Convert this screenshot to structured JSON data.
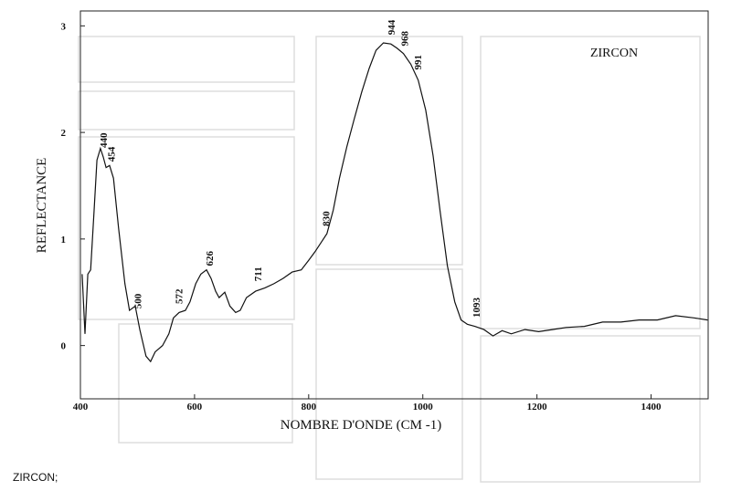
{
  "chart_data": {
    "type": "line",
    "title": "ZIRCON",
    "x_label": "NOMBRE D'ONDE (CM -1)",
    "y_label": "REFLECTANCE",
    "caption": "ZIRCON;",
    "color": "#111111",
    "xlim": [
      400,
      1500
    ],
    "ylim": [
      -0.5,
      3.14
    ],
    "xticks": [
      400,
      600,
      800,
      1000,
      1200,
      1400
    ],
    "yticks": [
      0,
      1,
      2,
      3
    ],
    "x": [
      403,
      408,
      413,
      418,
      424,
      429,
      435,
      440,
      445,
      451,
      458,
      467,
      478,
      486,
      496,
      504,
      515,
      523,
      531,
      544,
      555,
      563,
      573,
      584,
      592,
      602,
      611,
      621,
      629,
      637,
      643,
      653,
      662,
      672,
      680,
      691,
      707,
      723,
      739,
      755,
      771,
      787,
      800,
      811,
      822,
      832,
      843,
      854,
      867,
      880,
      893,
      906,
      918,
      931,
      944,
      955,
      966,
      979,
      992,
      1005,
      1018,
      1030,
      1043,
      1056,
      1067,
      1078,
      1091,
      1107,
      1123,
      1139,
      1155,
      1179,
      1203,
      1227,
      1251,
      1283,
      1315,
      1347,
      1379,
      1411,
      1443,
      1475,
      1499
    ],
    "y": [
      0.67,
      0.11,
      0.67,
      0.71,
      1.27,
      1.74,
      1.85,
      1.77,
      1.67,
      1.69,
      1.57,
      1.1,
      0.58,
      0.33,
      0.37,
      0.15,
      -0.1,
      -0.15,
      -0.06,
      0,
      0.11,
      0.26,
      0.31,
      0.33,
      0.41,
      0.58,
      0.67,
      0.71,
      0.63,
      0.51,
      0.45,
      0.5,
      0.37,
      0.31,
      0.33,
      0.45,
      0.51,
      0.54,
      0.58,
      0.63,
      0.69,
      0.71,
      0.8,
      0.88,
      0.97,
      1.05,
      1.27,
      1.57,
      1.87,
      2.13,
      2.38,
      2.6,
      2.77,
      2.84,
      2.83,
      2.79,
      2.74,
      2.64,
      2.49,
      2.21,
      1.78,
      1.27,
      0.75,
      0.41,
      0.24,
      0.2,
      0.18,
      0.15,
      0.09,
      0.14,
      0.11,
      0.15,
      0.13,
      0.15,
      0.17,
      0.18,
      0.22,
      0.22,
      0.24,
      0.24,
      0.28,
      0.26,
      0.24
    ],
    "annotations": [
      {
        "value": 440,
        "label": "440"
      },
      {
        "value": 454,
        "label": "454"
      },
      {
        "value": 500,
        "label": "500"
      },
      {
        "value": 572,
        "label": "572"
      },
      {
        "value": 626,
        "label": "626"
      },
      {
        "value": 711,
        "label": "711"
      },
      {
        "value": 830,
        "label": "830"
      },
      {
        "value": 944,
        "label": "944"
      },
      {
        "value": 968,
        "label": "968"
      },
      {
        "value": 991,
        "label": "991"
      },
      {
        "value": 1093,
        "label": "1093"
      }
    ]
  }
}
